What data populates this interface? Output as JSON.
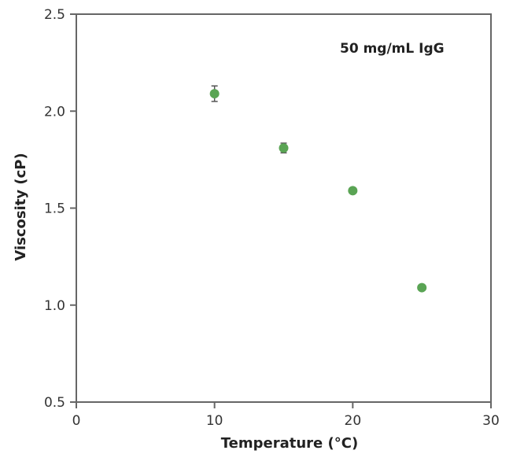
{
  "chart_data": {
    "type": "scatter",
    "title": "",
    "xlabel": "Temperature (°C)",
    "ylabel": "Viscosity (cP)",
    "xlim": [
      0,
      30
    ],
    "ylim": [
      0.5,
      2.5
    ],
    "xticks": [
      "0",
      "10",
      "20",
      "30"
    ],
    "yticks": [
      "0.5",
      "1.0",
      "1.5",
      "2.0",
      "2.5"
    ],
    "annotation": "50 mg/mL IgG",
    "grid": false,
    "legend": "none",
    "series": [
      {
        "x": [
          10,
          15,
          20,
          25
        ],
        "y": [
          2.09,
          1.81,
          1.59,
          1.09
        ],
        "error": [
          0.04,
          0.025,
          0.0,
          0.0
        ],
        "color": "#5aa454"
      }
    ]
  }
}
